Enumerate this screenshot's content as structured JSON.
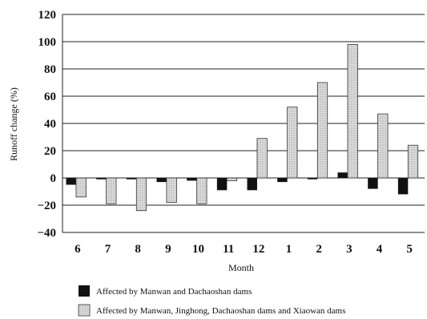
{
  "chart_data": {
    "type": "bar",
    "xlabel": "Month",
    "ylabel": "Runoff change (%)",
    "categories": [
      "6",
      "7",
      "8",
      "9",
      "10",
      "11",
      "12",
      "1",
      "2",
      "3",
      "4",
      "5"
    ],
    "ylim": [
      -40,
      120
    ],
    "yticks": [
      "−40",
      "−20",
      "0",
      "20",
      "40",
      "60",
      "80",
      "100",
      "120"
    ],
    "grid": true,
    "legend_position": "bottom",
    "series": [
      {
        "name": "Affected by Manwan and Dachaoshan dams",
        "color": "#111111",
        "values": [
          -5,
          -1,
          -1,
          -3,
          -2,
          -9,
          -9,
          -3,
          -1,
          4,
          -8,
          -12
        ]
      },
      {
        "name": "Affected by Manwan, Jinghong, Dachaoshan dams and Xiaowan dams",
        "color": "#c8c8c8",
        "values": [
          -14,
          -19,
          -24,
          -18,
          -19,
          -2,
          29,
          52,
          70,
          98,
          47,
          24
        ]
      }
    ]
  }
}
